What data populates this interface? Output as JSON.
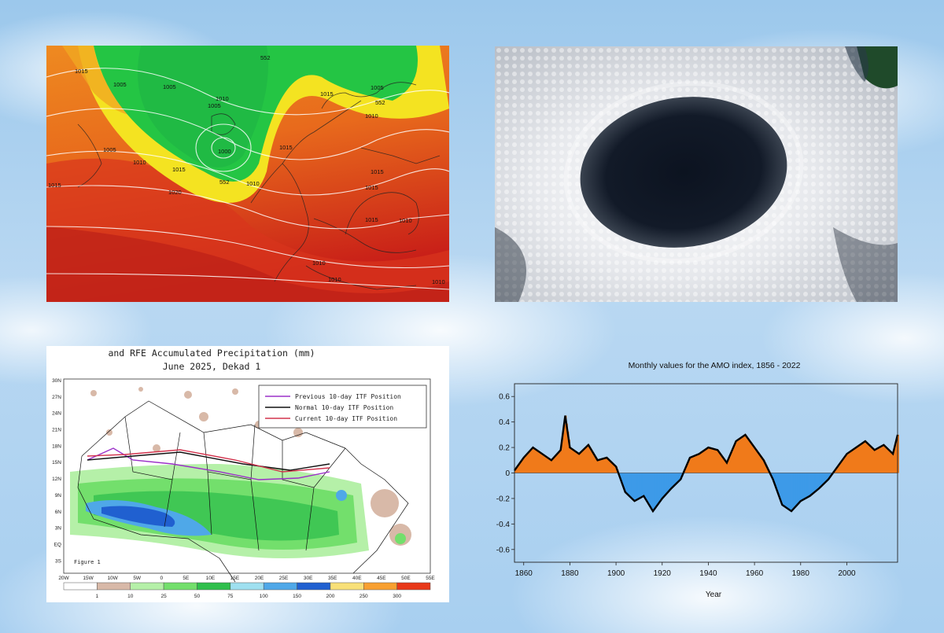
{
  "pressure_map": {
    "isobar_labels": [
      "1015",
      "1005",
      "1005",
      "1010",
      "1005",
      "1015",
      "1005",
      "1010",
      "1000",
      "1005",
      "1010",
      "1015",
      "1015",
      "1010",
      "1015",
      "1020",
      "1015",
      "1015",
      "1010",
      "1015",
      "1010",
      "1010",
      "1010"
    ],
    "contour_label": "552",
    "colors": {
      "deep_red": "#d22a1c",
      "orange": "#ee7f1e",
      "yellow": "#f6e21e",
      "green": "#25c341"
    }
  },
  "satellite": {
    "subject": "cloud-hole-satellite-image"
  },
  "rfe_map": {
    "title": "and RFE Accumulated Precipitation (mm)",
    "subtitle": "June 2025, Dekad 1",
    "legend": [
      "Previous 10-day ITF Position",
      "Normal 10-day ITF Position",
      "Current 10-day ITF Position"
    ],
    "legend_colors": [
      "#9b30c8",
      "#111111",
      "#d2334d"
    ],
    "lat_labels": [
      "30N",
      "27N",
      "24N",
      "21N",
      "18N",
      "15N",
      "12N",
      "9N",
      "6N",
      "3N",
      "EQ",
      "3S"
    ],
    "lon_labels": [
      "20W",
      "15W",
      "10W",
      "5W",
      "0",
      "5E",
      "10E",
      "15E",
      "20E",
      "25E",
      "30E",
      "35E",
      "40E",
      "45E",
      "50E",
      "55E"
    ],
    "figure_label": "Figure 1",
    "scale_labels": [
      "1",
      "10",
      "25",
      "50",
      "75",
      "100",
      "150",
      "200",
      "250",
      "300"
    ],
    "scale_colors": [
      "#ffffff",
      "#d8b9a8",
      "#b5f0a8",
      "#73df6c",
      "#2fbf4c",
      "#9fe0f0",
      "#4fa8e8",
      "#2060d0",
      "#f8e078",
      "#f8a030",
      "#e83818"
    ]
  },
  "chart_data": {
    "type": "area",
    "title": "Monthly values for the AMO index, 1856 - 2022",
    "xlabel": "Year",
    "ylabel": "",
    "xlim": [
      1856,
      2022
    ],
    "ylim": [
      -0.7,
      0.7
    ],
    "x_ticks": [
      1860,
      1880,
      1900,
      1920,
      1940,
      1960,
      1980,
      2000
    ],
    "y_ticks": [
      -0.6,
      -0.4,
      -0.2,
      0,
      0.2,
      0.4,
      0.6
    ],
    "colors": {
      "positive": "#f07a1a",
      "negative": "#3d9ae8",
      "smoothed": "#000000"
    },
    "x": [
      1856,
      1860,
      1864,
      1868,
      1872,
      1876,
      1878,
      1880,
      1884,
      1888,
      1892,
      1896,
      1900,
      1904,
      1908,
      1912,
      1916,
      1920,
      1924,
      1928,
      1932,
      1936,
      1940,
      1944,
      1948,
      1952,
      1956,
      1960,
      1964,
      1968,
      1972,
      1976,
      1980,
      1984,
      1988,
      1992,
      1996,
      2000,
      2004,
      2008,
      2012,
      2016,
      2020,
      2022
    ],
    "smoothed": [
      0.02,
      0.12,
      0.2,
      0.15,
      0.1,
      0.18,
      0.45,
      0.2,
      0.15,
      0.22,
      0.1,
      0.12,
      0.05,
      -0.15,
      -0.22,
      -0.18,
      -0.3,
      -0.2,
      -0.12,
      -0.05,
      0.12,
      0.15,
      0.2,
      0.18,
      0.08,
      0.25,
      0.3,
      0.2,
      0.1,
      -0.05,
      -0.25,
      -0.3,
      -0.22,
      -0.18,
      -0.12,
      -0.05,
      0.05,
      0.15,
      0.2,
      0.25,
      0.18,
      0.22,
      0.15,
      0.3
    ]
  }
}
